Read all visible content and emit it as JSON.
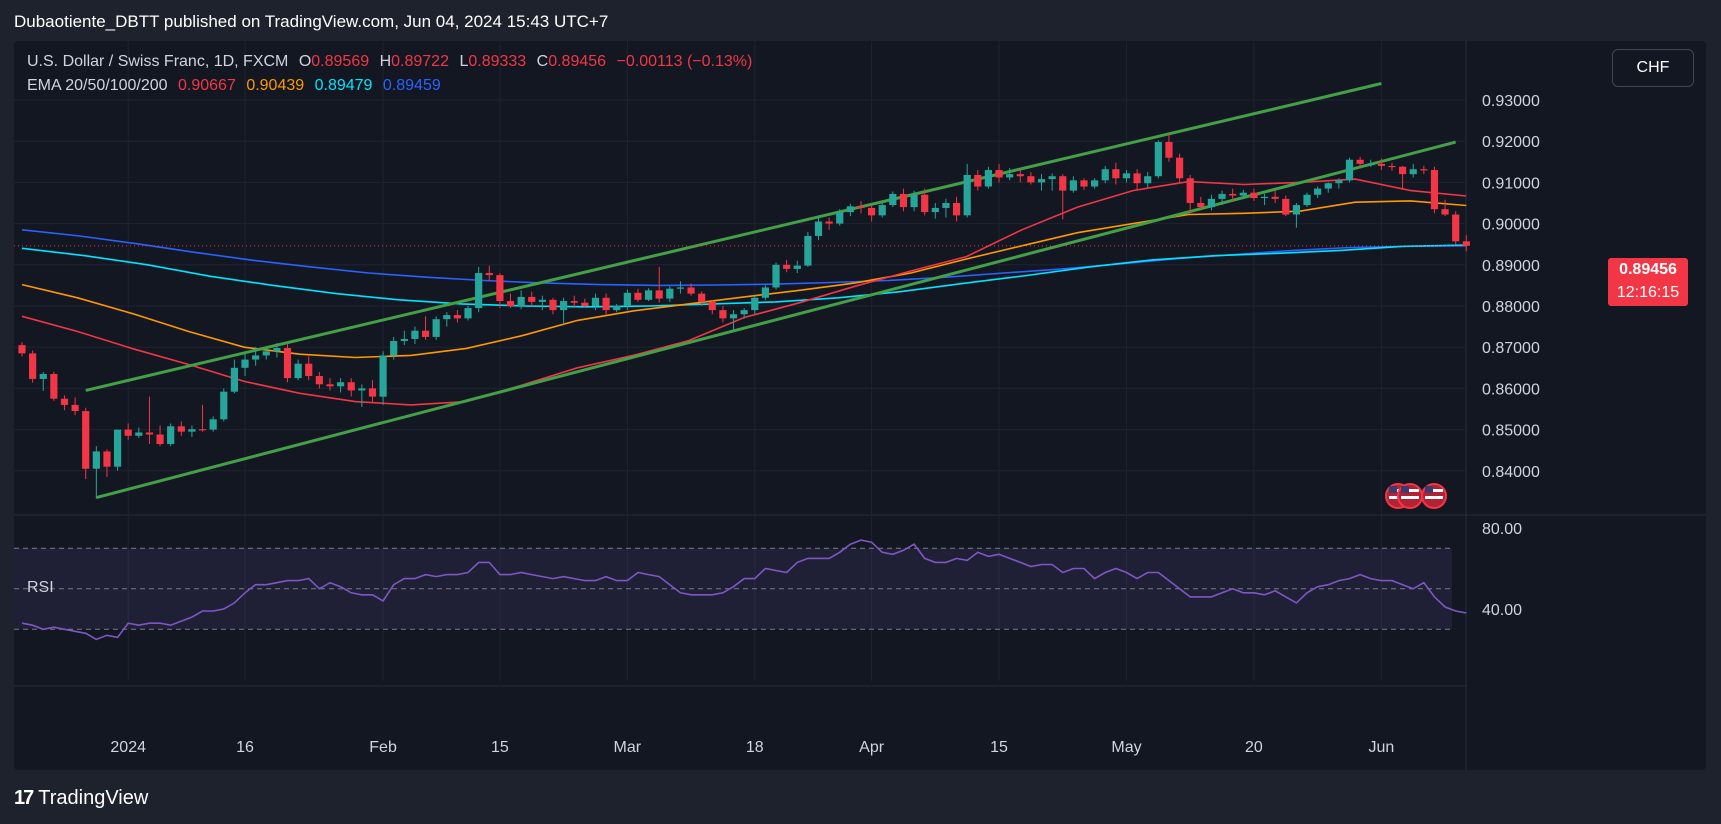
{
  "header": {
    "title": "Dubaotiente_DBTT published on TradingView.com, Jun 04, 2024 15:43 UTC+7"
  },
  "legend": {
    "symbol": "U.S. Dollar / Swiss Franc, 1D, FXCM",
    "open_label": "O",
    "open": "0.89569",
    "high_label": "H",
    "high": "0.89722",
    "low_label": "L",
    "low": "0.89333",
    "close_label": "C",
    "close": "0.89456",
    "change": "−0.00113 (−0.13%)",
    "ema_label": "EMA 20/50/100/200",
    "ema20": "0.90667",
    "ema50": "0.90439",
    "ema100": "0.89479",
    "ema200": "0.89459"
  },
  "currency_button": "CHF",
  "price_tag": {
    "price": "0.89456",
    "countdown": "12:16:15"
  },
  "rsi": {
    "label": "RSI"
  },
  "footer": {
    "brand": "TradingView"
  },
  "colors": {
    "up": "#26a69a",
    "down": "#f23645",
    "ema20": "#f23645",
    "ema50": "#ff9800",
    "ema100": "#00e5ff",
    "ema200": "#2962ff",
    "channel": "#43a047",
    "rsi": "#7e57c2"
  },
  "chart_data": {
    "type": "candlestick",
    "y_ticks": [
      "0.93000",
      "0.92000",
      "0.91000",
      "0.90000",
      "0.89000",
      "0.88000",
      "0.87000",
      "0.86000",
      "0.85000",
      "0.84000"
    ],
    "x_ticks": [
      "2024",
      "16",
      "Feb",
      "15",
      "Mar",
      "18",
      "Apr",
      "15",
      "May",
      "20",
      "Jun"
    ],
    "rsi_ticks": [
      "80.00",
      "40.00"
    ],
    "rsi_levels": [
      70,
      50,
      30
    ],
    "candles": [
      [
        0.8705,
        0.8712,
        0.8678,
        0.8685
      ],
      [
        0.8685,
        0.8692,
        0.8614,
        0.8623
      ],
      [
        0.8623,
        0.864,
        0.8594,
        0.8635
      ],
      [
        0.8635,
        0.864,
        0.857,
        0.8575
      ],
      [
        0.8575,
        0.8583,
        0.8547,
        0.856
      ],
      [
        0.856,
        0.8578,
        0.8535,
        0.8545
      ],
      [
        0.8545,
        0.8553,
        0.838,
        0.8405
      ],
      [
        0.8405,
        0.846,
        0.8333,
        0.8447
      ],
      [
        0.8447,
        0.8452,
        0.8385,
        0.841
      ],
      [
        0.841,
        0.85,
        0.84,
        0.85
      ],
      [
        0.85,
        0.8515,
        0.8475,
        0.8485
      ],
      [
        0.8485,
        0.8505,
        0.848,
        0.8493
      ],
      [
        0.8493,
        0.858,
        0.8465,
        0.8488
      ],
      [
        0.8488,
        0.851,
        0.846,
        0.8465
      ],
      [
        0.8465,
        0.8515,
        0.846,
        0.8508
      ],
      [
        0.8508,
        0.852,
        0.8485,
        0.8495
      ],
      [
        0.8495,
        0.851,
        0.8482,
        0.8501
      ],
      [
        0.8501,
        0.856,
        0.8495,
        0.85
      ],
      [
        0.85,
        0.8532,
        0.8495,
        0.8525
      ],
      [
        0.8525,
        0.86,
        0.852,
        0.8592
      ],
      [
        0.8592,
        0.867,
        0.8588,
        0.865
      ],
      [
        0.865,
        0.8685,
        0.863,
        0.867
      ],
      [
        0.867,
        0.87,
        0.8655,
        0.868
      ],
      [
        0.868,
        0.87,
        0.867,
        0.869
      ],
      [
        0.869,
        0.871,
        0.8675,
        0.8698
      ],
      [
        0.8698,
        0.8708,
        0.8615,
        0.8625
      ],
      [
        0.8625,
        0.867,
        0.862,
        0.866
      ],
      [
        0.866,
        0.8678,
        0.862,
        0.863
      ],
      [
        0.863,
        0.864,
        0.86,
        0.861
      ],
      [
        0.861,
        0.8625,
        0.8595,
        0.8605
      ],
      [
        0.8605,
        0.8625,
        0.859,
        0.8615
      ],
      [
        0.8615,
        0.8625,
        0.858,
        0.8595
      ],
      [
        0.8595,
        0.861,
        0.8555,
        0.86
      ],
      [
        0.86,
        0.862,
        0.8565,
        0.858
      ],
      [
        0.858,
        0.869,
        0.856,
        0.868
      ],
      [
        0.868,
        0.8725,
        0.867,
        0.8715
      ],
      [
        0.8715,
        0.874,
        0.8705,
        0.872
      ],
      [
        0.872,
        0.875,
        0.8708,
        0.874
      ],
      [
        0.874,
        0.8775,
        0.8718,
        0.8725
      ],
      [
        0.8725,
        0.8775,
        0.8718,
        0.8768
      ],
      [
        0.8768,
        0.8785,
        0.875,
        0.8778
      ],
      [
        0.8778,
        0.879,
        0.876,
        0.877
      ],
      [
        0.877,
        0.88,
        0.8765,
        0.8795
      ],
      [
        0.8795,
        0.8895,
        0.8785,
        0.888
      ],
      [
        0.888,
        0.8898,
        0.886,
        0.8875
      ],
      [
        0.8875,
        0.888,
        0.8795,
        0.8812
      ],
      [
        0.8812,
        0.883,
        0.8795,
        0.88
      ],
      [
        0.88,
        0.8838,
        0.8792,
        0.8822
      ],
      [
        0.8822,
        0.8835,
        0.88,
        0.881
      ],
      [
        0.881,
        0.8825,
        0.879,
        0.8815
      ],
      [
        0.8815,
        0.882,
        0.878,
        0.879
      ],
      [
        0.879,
        0.882,
        0.8755,
        0.8812
      ],
      [
        0.8812,
        0.8825,
        0.8795,
        0.8808
      ],
      [
        0.8808,
        0.8818,
        0.8795,
        0.88
      ],
      [
        0.88,
        0.883,
        0.879,
        0.882
      ],
      [
        0.882,
        0.883,
        0.878,
        0.879
      ],
      [
        0.879,
        0.8805,
        0.8785,
        0.88
      ],
      [
        0.88,
        0.884,
        0.879,
        0.8832
      ],
      [
        0.8832,
        0.8842,
        0.881,
        0.8815
      ],
      [
        0.8815,
        0.8843,
        0.8812,
        0.8838
      ],
      [
        0.8838,
        0.8895,
        0.8808,
        0.8818
      ],
      [
        0.8818,
        0.8848,
        0.881,
        0.8842
      ],
      [
        0.8842,
        0.886,
        0.883,
        0.8845
      ],
      [
        0.8845,
        0.8855,
        0.8825,
        0.883
      ],
      [
        0.883,
        0.8835,
        0.88,
        0.881
      ],
      [
        0.881,
        0.8815,
        0.878,
        0.879
      ],
      [
        0.879,
        0.88,
        0.876,
        0.877
      ],
      [
        0.877,
        0.879,
        0.874,
        0.878
      ],
      [
        0.878,
        0.8795,
        0.877,
        0.879
      ],
      [
        0.879,
        0.8825,
        0.878,
        0.882
      ],
      [
        0.882,
        0.885,
        0.8815,
        0.8845
      ],
      [
        0.8845,
        0.8905,
        0.884,
        0.89
      ],
      [
        0.89,
        0.8912,
        0.8882,
        0.889
      ],
      [
        0.889,
        0.891,
        0.888,
        0.8898
      ],
      [
        0.8898,
        0.898,
        0.8895,
        0.897
      ],
      [
        0.897,
        0.902,
        0.896,
        0.9005
      ],
      [
        0.9005,
        0.9015,
        0.8985,
        0.9
      ],
      [
        0.9,
        0.9035,
        0.8995,
        0.9028
      ],
      [
        0.9028,
        0.9048,
        0.9018,
        0.9042
      ],
      [
        0.9042,
        0.9055,
        0.9025,
        0.9038
      ],
      [
        0.9038,
        0.9045,
        0.9005,
        0.902
      ],
      [
        0.902,
        0.905,
        0.9015,
        0.9045
      ],
      [
        0.9045,
        0.9078,
        0.904,
        0.9072
      ],
      [
        0.9072,
        0.9085,
        0.903,
        0.904
      ],
      [
        0.904,
        0.908,
        0.903,
        0.907
      ],
      [
        0.907,
        0.9085,
        0.902,
        0.9028
      ],
      [
        0.9028,
        0.905,
        0.9012,
        0.9038
      ],
      [
        0.9038,
        0.906,
        0.9015,
        0.905
      ],
      [
        0.905,
        0.9065,
        0.9005,
        0.902
      ],
      [
        0.902,
        0.9145,
        0.9015,
        0.9118
      ],
      [
        0.9118,
        0.913,
        0.908,
        0.909
      ],
      [
        0.909,
        0.9138,
        0.9085,
        0.913
      ],
      [
        0.913,
        0.9145,
        0.91,
        0.9112
      ],
      [
        0.9112,
        0.9135,
        0.9105,
        0.912
      ],
      [
        0.912,
        0.913,
        0.91,
        0.9115
      ],
      [
        0.9115,
        0.9125,
        0.9095,
        0.91
      ],
      [
        0.91,
        0.912,
        0.908,
        0.9108
      ],
      [
        0.9108,
        0.9122,
        0.908,
        0.9115
      ],
      [
        0.9115,
        0.912,
        0.901,
        0.908
      ],
      [
        0.908,
        0.9115,
        0.9075,
        0.9105
      ],
      [
        0.9105,
        0.911,
        0.9082,
        0.909
      ],
      [
        0.909,
        0.911,
        0.9085,
        0.9105
      ],
      [
        0.9105,
        0.914,
        0.9098,
        0.9132
      ],
      [
        0.9132,
        0.9148,
        0.9095,
        0.911
      ],
      [
        0.911,
        0.913,
        0.91,
        0.9122
      ],
      [
        0.9122,
        0.9132,
        0.908,
        0.9098
      ],
      [
        0.9098,
        0.9125,
        0.9088,
        0.9115
      ],
      [
        0.9115,
        0.9202,
        0.911,
        0.9198
      ],
      [
        0.9198,
        0.9219,
        0.915,
        0.916
      ],
      [
        0.916,
        0.917,
        0.91,
        0.911
      ],
      [
        0.911,
        0.9118,
        0.9025,
        0.905
      ],
      [
        0.905,
        0.9065,
        0.9035,
        0.904
      ],
      [
        0.904,
        0.907,
        0.9032,
        0.906
      ],
      [
        0.906,
        0.908,
        0.9045,
        0.9072
      ],
      [
        0.9072,
        0.9085,
        0.9055,
        0.9068
      ],
      [
        0.9068,
        0.9082,
        0.906,
        0.9075
      ],
      [
        0.9075,
        0.9085,
        0.9055,
        0.9062
      ],
      [
        0.9062,
        0.9072,
        0.9045,
        0.9065
      ],
      [
        0.9065,
        0.908,
        0.905,
        0.906
      ],
      [
        0.906,
        0.9068,
        0.9018,
        0.9022
      ],
      [
        0.9022,
        0.905,
        0.899,
        0.9045
      ],
      [
        0.9045,
        0.9075,
        0.904,
        0.907
      ],
      [
        0.907,
        0.909,
        0.9062,
        0.9085
      ],
      [
        0.9085,
        0.91,
        0.9075,
        0.9098
      ],
      [
        0.9098,
        0.911,
        0.9085,
        0.9105
      ],
      [
        0.9105,
        0.916,
        0.91,
        0.9155
      ],
      [
        0.9155,
        0.9162,
        0.9138,
        0.9145
      ],
      [
        0.9145,
        0.9155,
        0.9138,
        0.9145
      ],
      [
        0.9145,
        0.9158,
        0.913,
        0.914
      ],
      [
        0.914,
        0.9148,
        0.9128,
        0.9138
      ],
      [
        0.9138,
        0.914,
        0.9085,
        0.912
      ],
      [
        0.912,
        0.9145,
        0.9112,
        0.9132
      ],
      [
        0.9132,
        0.914,
        0.912,
        0.913
      ],
      [
        0.913,
        0.9138,
        0.9025,
        0.9035
      ],
      [
        0.9035,
        0.9058,
        0.9018,
        0.9022
      ],
      [
        0.9022,
        0.903,
        0.895,
        0.8957
      ],
      [
        0.8957,
        0.8972,
        0.8933,
        0.8946
      ]
    ],
    "ema": {
      "ema20": [
        0.8775,
        0.8738,
        0.8696,
        0.8658,
        0.8617,
        0.8588,
        0.8568,
        0.856,
        0.8568,
        0.8608,
        0.865,
        0.868,
        0.8716,
        0.8772,
        0.8808,
        0.8848,
        0.8885,
        0.892,
        0.8985,
        0.904,
        0.908,
        0.9102,
        0.9095,
        0.91,
        0.9108,
        0.908,
        0.9067
      ],
      "ema50": [
        0.8852,
        0.882,
        0.8781,
        0.8738,
        0.87,
        0.8683,
        0.8675,
        0.868,
        0.8697,
        0.8728,
        0.8765,
        0.8788,
        0.8805,
        0.8822,
        0.8838,
        0.8856,
        0.888,
        0.8914,
        0.8946,
        0.8978,
        0.9,
        0.9022,
        0.9025,
        0.903,
        0.9052,
        0.9055,
        0.9044
      ],
      "ema100": [
        0.894,
        0.8922,
        0.89,
        0.8872,
        0.885,
        0.883,
        0.8815,
        0.8805,
        0.88,
        0.8798,
        0.88,
        0.8805,
        0.881,
        0.882,
        0.8835,
        0.8855,
        0.8874,
        0.8895,
        0.8912,
        0.8922,
        0.8928,
        0.8935,
        0.8945,
        0.8948
      ],
      "ema200": [
        0.8985,
        0.897,
        0.8951,
        0.893,
        0.8911,
        0.8895,
        0.888,
        0.887,
        0.8862,
        0.8856,
        0.8852,
        0.885,
        0.8851,
        0.8853,
        0.8857,
        0.8862,
        0.887,
        0.888,
        0.889,
        0.8902,
        0.8915,
        0.8925,
        0.8935,
        0.8942,
        0.8945,
        0.8946
      ]
    },
    "channels": [
      {
        "from": {
          "bar": 6,
          "price": 0.8595
        },
        "to": {
          "bar": 128,
          "price": 0.934
        }
      },
      {
        "from": {
          "bar": 7,
          "price": 0.8335
        },
        "to": {
          "bar": 135,
          "price": 0.9198
        }
      }
    ],
    "rsi_values": [
      33,
      32,
      30,
      31,
      30,
      29,
      28,
      25,
      27,
      26,
      33,
      32,
      33,
      33,
      32,
      34,
      36,
      39,
      39,
      40,
      43,
      48,
      52,
      52,
      53,
      54,
      54,
      55,
      50,
      53,
      51,
      48,
      47,
      47,
      44,
      52,
      55,
      55,
      57,
      56,
      57,
      57,
      58,
      63,
      63,
      57,
      57,
      58,
      57,
      56,
      55,
      56,
      55,
      54,
      54,
      56,
      54,
      54,
      58,
      57,
      56,
      52,
      48,
      47,
      47,
      47,
      48,
      51,
      55,
      55,
      60,
      59,
      58,
      63,
      65,
      65,
      65,
      68,
      72,
      74,
      73,
      68,
      67,
      69,
      72,
      65,
      63,
      63,
      65,
      64,
      68,
      66,
      67,
      65,
      63,
      61,
      62,
      62,
      58,
      60,
      60,
      55,
      58,
      60,
      58,
      55,
      58,
      58,
      54,
      50,
      46,
      46,
      46,
      48,
      50,
      48,
      48,
      47,
      49,
      46,
      43,
      48,
      51,
      52,
      54,
      55,
      57,
      55,
      54,
      54,
      52,
      50,
      53,
      46,
      41,
      39,
      38
    ]
  }
}
